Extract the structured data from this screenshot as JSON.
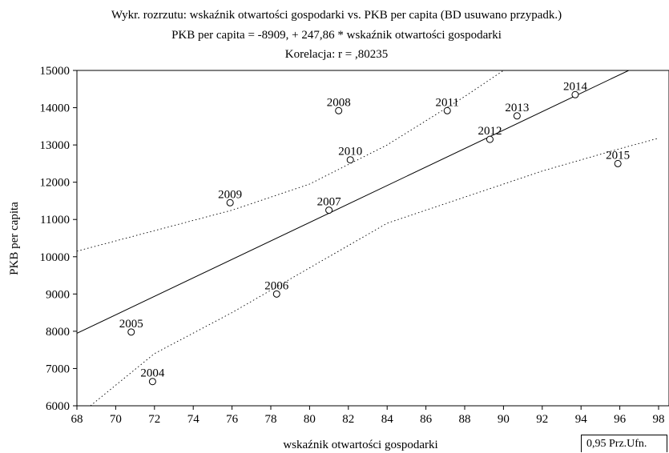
{
  "chart_data": {
    "type": "scatter",
    "title": "Wykr. rozrzutu: wskaźnik otwartości gospodarki vs. PKB per capita (BD usuwano przypadk.)",
    "subtitle": "PKB per capita = -8909, + 247,86 * wskaźnik otwartości gospodarki",
    "subtitle2": "Korelacja: r =   ,80235",
    "xlabel": "wskaźnik otwartości gospodarki",
    "ylabel": "PKB per capita",
    "xlim": [
      68,
      98
    ],
    "ylim": [
      6000,
      15000
    ],
    "xticks": [
      68,
      70,
      72,
      74,
      76,
      78,
      80,
      82,
      84,
      86,
      88,
      90,
      92,
      94,
      96,
      98
    ],
    "yticks": [
      6000,
      7000,
      8000,
      9000,
      10000,
      11000,
      12000,
      13000,
      14000,
      15000
    ],
    "grid": false,
    "points": [
      {
        "label": "2004",
        "x": 71.9,
        "y": 6650
      },
      {
        "label": "2005",
        "x": 70.8,
        "y": 7980
      },
      {
        "label": "2006",
        "x": 78.3,
        "y": 9000
      },
      {
        "label": "2007",
        "x": 81.0,
        "y": 11250
      },
      {
        "label": "2008",
        "x": 81.5,
        "y": 13920
      },
      {
        "label": "2009",
        "x": 75.9,
        "y": 11450
      },
      {
        "label": "2010",
        "x": 82.1,
        "y": 12600
      },
      {
        "label": "2011",
        "x": 87.1,
        "y": 13920
      },
      {
        "label": "2012",
        "x": 89.3,
        "y": 13150
      },
      {
        "label": "2013",
        "x": 90.7,
        "y": 13780
      },
      {
        "label": "2014",
        "x": 93.7,
        "y": 14350
      },
      {
        "label": "2015",
        "x": 95.9,
        "y": 12500
      }
    ],
    "regression": {
      "intercept": -8909,
      "slope": 247.86
    },
    "confidence_band": {
      "upper": [
        [
          68,
          10150
        ],
        [
          72,
          10700
        ],
        [
          76,
          11250
        ],
        [
          80,
          11950
        ],
        [
          84,
          13000
        ],
        [
          86,
          13650
        ],
        [
          88,
          14300
        ],
        [
          90,
          15000
        ]
      ],
      "lower": [
        [
          68.7,
          6000
        ],
        [
          72,
          7400
        ],
        [
          76,
          8500
        ],
        [
          80,
          9700
        ],
        [
          84,
          10900
        ],
        [
          88,
          11600
        ],
        [
          92,
          12300
        ],
        [
          96,
          12900
        ],
        [
          98,
          13180
        ]
      ]
    },
    "legend": {
      "text": "0,95 Prz.Ufn.",
      "position": "bottom-right"
    }
  }
}
